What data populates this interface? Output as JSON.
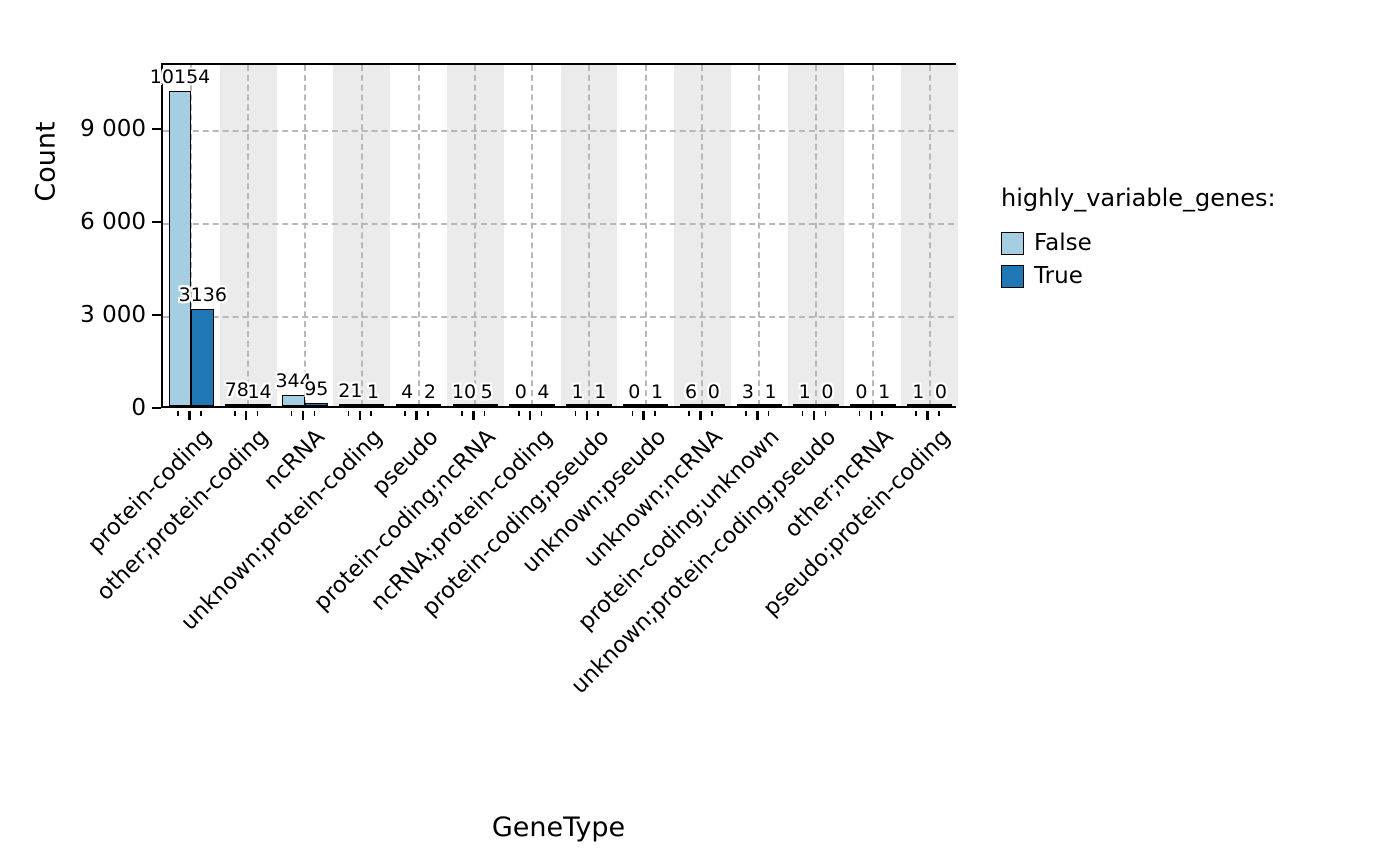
{
  "chart_data": {
    "type": "bar",
    "title": "",
    "xlabel": "GeneType",
    "ylabel": "Count",
    "legend_title": "highly_variable_genes:",
    "legend_position": "right of plot",
    "grid": "dashed horizontal and vertical, alternating gray column bands",
    "bar_value_labels": true,
    "ylim": [
      0,
      11130
    ],
    "yticks": [
      0,
      3000,
      6000,
      9000
    ],
    "ytick_labels": [
      "0",
      "3 000",
      "6 000",
      "9 000"
    ],
    "categories": [
      "protein-coding",
      "other;protein-coding",
      "ncRNA",
      "unknown;protein-coding",
      "pseudo",
      "protein-coding;ncRNA",
      "ncRNA;protein-coding",
      "protein-coding;pseudo",
      "unknown;pseudo",
      "unknown;ncRNA",
      "protein-coding;unknown",
      "unknown;protein-coding;pseudo",
      "other;ncRNA",
      "pseudo;protein-coding"
    ],
    "series": [
      {
        "name": "False",
        "color": "#a6cee3",
        "values": [
          10154,
          78,
          344,
          21,
          4,
          10,
          0,
          1,
          0,
          6,
          3,
          1,
          0,
          1
        ]
      },
      {
        "name": "True",
        "color": "#1f78b4",
        "values": [
          3136,
          14,
          95,
          1,
          2,
          5,
          4,
          1,
          1,
          0,
          1,
          0,
          1,
          0
        ]
      }
    ]
  },
  "colors": {
    "false_bar": "#a6cee3",
    "true_bar": "#1f78b4",
    "bar_edge": "#000000",
    "band": "#ebebeb",
    "grid": "#b8b8b8",
    "plot_border": "#000000",
    "background": "#ffffff"
  }
}
